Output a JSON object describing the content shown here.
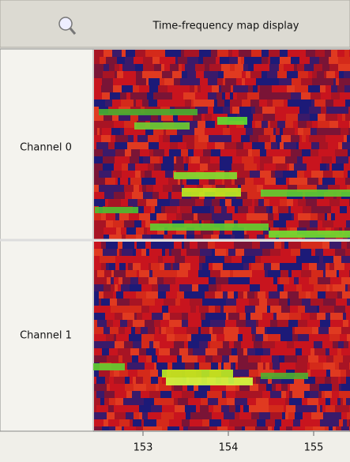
{
  "header": {
    "title": "Time-frequency map display"
  },
  "channels": [
    {
      "label": "Channel 0"
    },
    {
      "label": "Channel 1"
    }
  ],
  "x_axis": {
    "ticks": [
      "153",
      "154",
      "155"
    ]
  }
}
